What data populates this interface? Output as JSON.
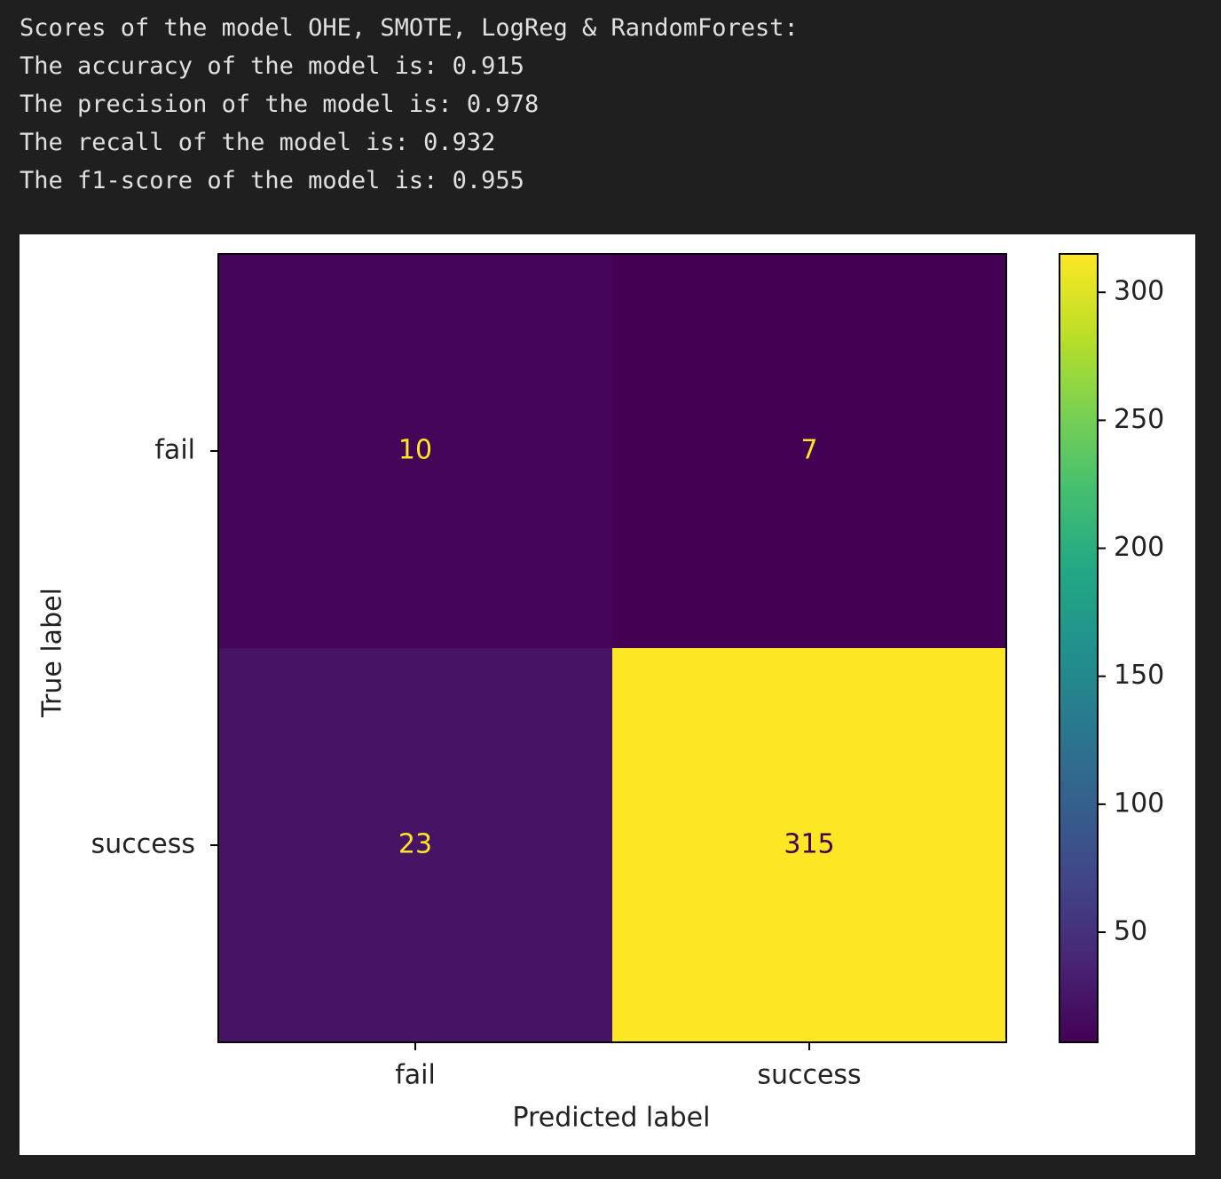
{
  "output_lines": [
    "Scores of the model OHE, SMOTE, LogReg & RandomForest:",
    "The accuracy of the model is: 0.915",
    "The precision of the model is: 0.978",
    "The recall of the model is: 0.932",
    "The f1-score of the model is: 0.955"
  ],
  "chart_data": {
    "type": "heatmap",
    "xlabel": "Predicted label",
    "ylabel": "True label",
    "x_categories": [
      "fail",
      "success"
    ],
    "y_categories": [
      "fail",
      "success"
    ],
    "values": [
      [
        10,
        7
      ],
      [
        23,
        315
      ]
    ],
    "colormap": "viridis",
    "clim": [
      7,
      315
    ],
    "cticks": [
      50,
      100,
      150,
      200,
      250,
      300
    ]
  }
}
